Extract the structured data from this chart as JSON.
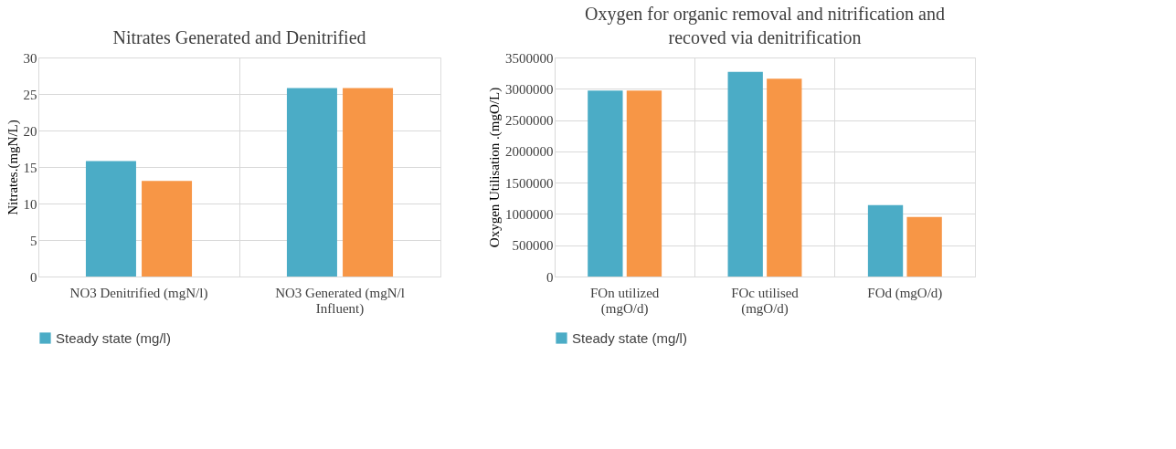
{
  "chart_data": [
    {
      "type": "bar",
      "title": "Nitrates  Generated and Denitrified",
      "ylabel": "Nitrates.(mgN/L)",
      "categories": [
        "NO3 Denitrified (mgN/l)",
        "NO3 Generated (mgN/l Influent)"
      ],
      "series": [
        {
          "name": "Steady state (mg/l)",
          "color": "#4bacc6",
          "values": [
            15.8,
            25.8
          ]
        },
        {
          "color": "#f79646",
          "values": [
            13.1,
            25.8
          ]
        }
      ],
      "ylim": [
        0,
        30
      ],
      "yticks": [
        0,
        5,
        10,
        15,
        20,
        25,
        30
      ],
      "grid": true,
      "legend": "bottom"
    },
    {
      "type": "bar",
      "title": "Oxygen for organic removal and nitrification and recoved via denitrification",
      "ylabel": "Oxygen Utilisation  .(mgO/L)",
      "categories": [
        "FOn utilized (mgO/d)",
        "FOc utilised (mgO/d)",
        "FOd (mgO/d)"
      ],
      "series": [
        {
          "name": "Steady state (mg/l)",
          "color": "#4bacc6",
          "values": [
            2970000,
            3270000,
            1140000
          ]
        },
        {
          "color": "#f79646",
          "values": [
            2970000,
            3160000,
            950000
          ]
        }
      ],
      "ylim": [
        0,
        3500000
      ],
      "yticks": [
        0,
        500000,
        1000000,
        1500000,
        2000000,
        2500000,
        3000000,
        3500000
      ],
      "grid": true,
      "legend": "bottom"
    }
  ]
}
